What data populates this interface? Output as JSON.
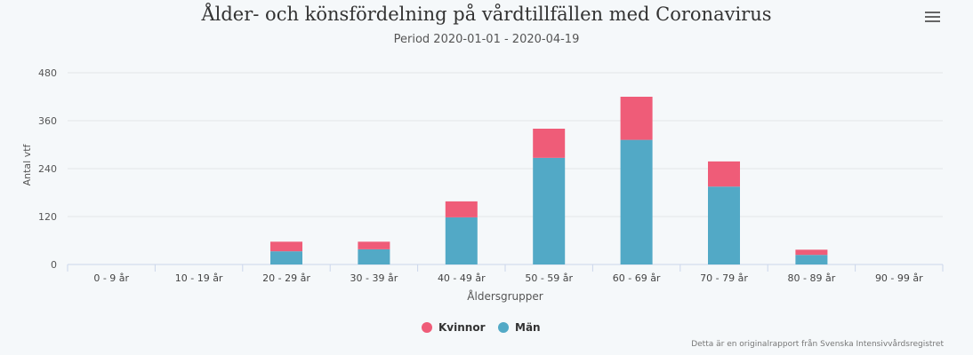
{
  "chart_data": {
    "type": "bar",
    "stacked": true,
    "title": "Ålder- och könsfördelning på vårdtillfällen med Coronavirus",
    "subtitle": "Period 2020-01-01 - 2020-04-19",
    "xlabel": "Åldersgrupper",
    "ylabel": "Antal vtf",
    "categories": [
      "0 - 9 år",
      "10 - 19 år",
      "20 - 29 år",
      "30 - 39 år",
      "40 - 49 år",
      "50 - 59 år",
      "60 - 69 år",
      "70 - 79 år",
      "80 - 89 år",
      "90 - 99 år"
    ],
    "series": [
      {
        "name": "Män",
        "color": "#52a9c6",
        "values": [
          0,
          0,
          33,
          38,
          118,
          267,
          312,
          195,
          24,
          0
        ]
      },
      {
        "name": "Kvinnor",
        "color": "#ef5c78",
        "values": [
          0,
          0,
          24,
          19,
          40,
          73,
          108,
          63,
          13,
          0
        ]
      }
    ],
    "legend_order": [
      "Kvinnor",
      "Män"
    ],
    "ylim": [
      0,
      480
    ],
    "yticks": [
      0,
      120,
      240,
      360,
      480
    ],
    "grid": true,
    "legend_position": "bottom-center"
  },
  "credit": "Detta är en originalrapport från Svenska Intensivvårdsregistret",
  "menu_icon": "hamburger-menu-icon"
}
